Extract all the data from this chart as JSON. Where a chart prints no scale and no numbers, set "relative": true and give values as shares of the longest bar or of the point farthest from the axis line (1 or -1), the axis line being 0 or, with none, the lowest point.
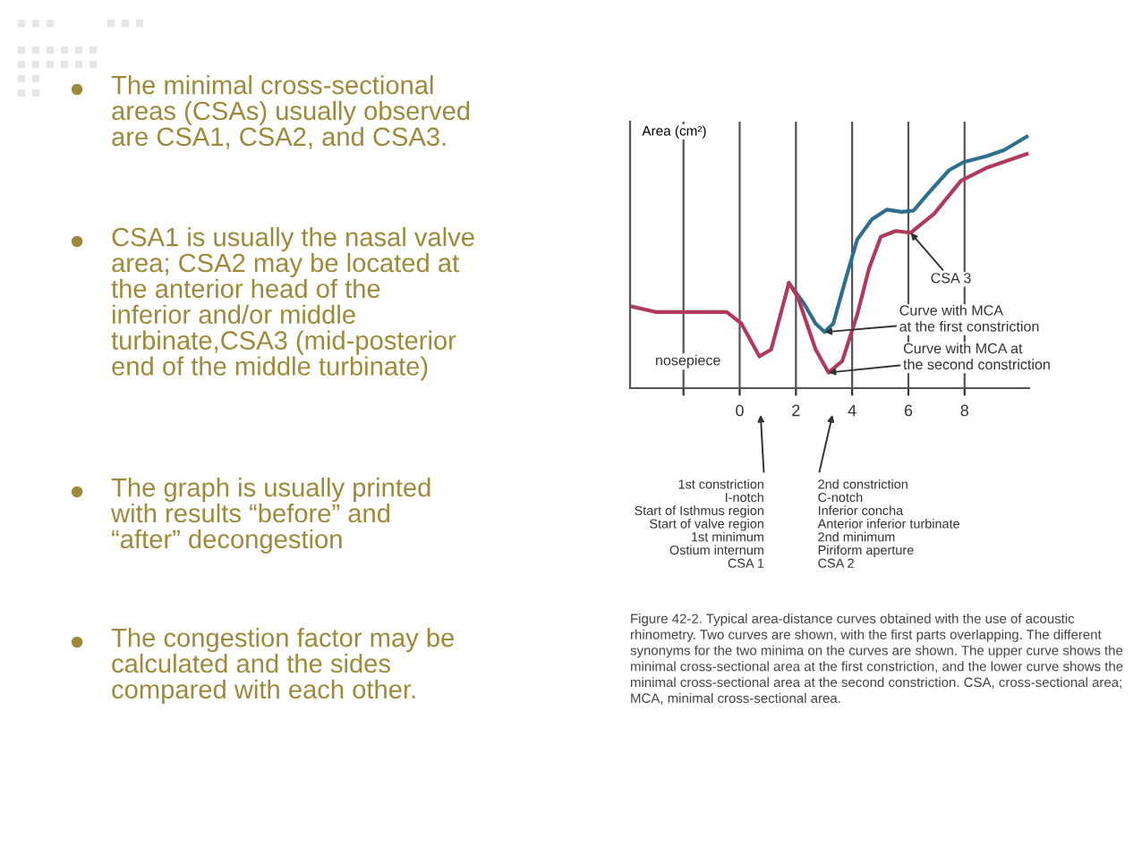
{
  "chart_data": [
    {
      "type": "other",
      "annotations": [
        "The minimal cross-sectional\nareas (CSAs) usually observed\nare CSA1, CSA2, and CSA3.",
        "CSA1 is usually the nasal valve\narea; CSA2 may be located at\nthe anterior head of the\ninferior and/or middle\nturbinate,CSA3 (mid-posterior\nend of the middle turbinate)",
        "The graph is usually printed\nwith results “before” and\n“after” decongestion",
        "The congestion factor may be\ncalculated and the sides\ncompared with each other."
      ]
    },
    {
      "type": "line",
      "relative": true,
      "ylabel": "Area (cm²)",
      "xlim": [
        -3.9,
        10.3
      ],
      "xticks": [
        {
          "value": -2,
          "label": null
        },
        0,
        2,
        4,
        6,
        8
      ],
      "grid": "x",
      "series": [
        {
          "color": "#2e6f8e",
          "x": [
            1.75,
            2.28,
            2.7,
            3.02,
            3.33,
            3.76,
            4.18,
            4.7,
            5.23,
            5.76,
            6.18,
            6.71,
            7.45,
            7.97,
            8.82,
            9.41,
            10.21
          ],
          "values": [
            0.418,
            0.338,
            0.257,
            0.223,
            0.257,
            0.43,
            0.591,
            0.671,
            0.71,
            0.701,
            0.706,
            0.775,
            0.867,
            0.899,
            0.924,
            0.947,
            1.0
          ]
        },
        {
          "color": "#b03a5b",
          "x": [
            -3.9,
            -3.0,
            -0.46,
            0.06,
            0.7,
            1.12,
            1.75,
            2.07,
            2.7,
            3.16,
            3.65,
            4.18,
            4.6,
            5.02,
            5.55,
            6.08,
            6.92,
            7.87,
            8.82,
            10.21
          ],
          "values": [
            0.326,
            0.303,
            0.303,
            0.257,
            0.126,
            0.154,
            0.418,
            0.361,
            0.154,
            0.062,
            0.108,
            0.292,
            0.476,
            0.602,
            0.625,
            0.618,
            0.694,
            0.825,
            0.878,
            0.931
          ]
        }
      ],
      "annotations": [
        "nosepiece",
        {
          "text": "CSA 3",
          "x": 6.08,
          "y": 0.618
        },
        {
          "text": "Curve with MCA\nat the first constriction",
          "x": 3.02,
          "y": 0.223
        },
        {
          "text": "Curve with MCA at\nthe second constriction",
          "x": 3.16,
          "y": 0.062
        },
        "1st constriction\nI-notch\nStart of Isthmus region\nStart of valve region\n1st minimum\nOstium internum\nCSA 1",
        "2nd constriction\nC-notch\nInferior concha\nAnterior inferior turbinate\n2nd minimum\nPiriform aperture\nCSA 2",
        "Figure 42-2. Typical area-distance curves obtained with the use of acoustic rhinometry. Two curves are shown, with the first parts overlapping. The different synonyms for the two minima on the curves are shown. The upper curve shows the minimal cross-sectional area at the first constriction, and the lower curve shows the minimal cross-sectional area at the second constriction. CSA, cross-sectional area; MCA, minimal cross-sectional area."
      ]
    }
  ]
}
